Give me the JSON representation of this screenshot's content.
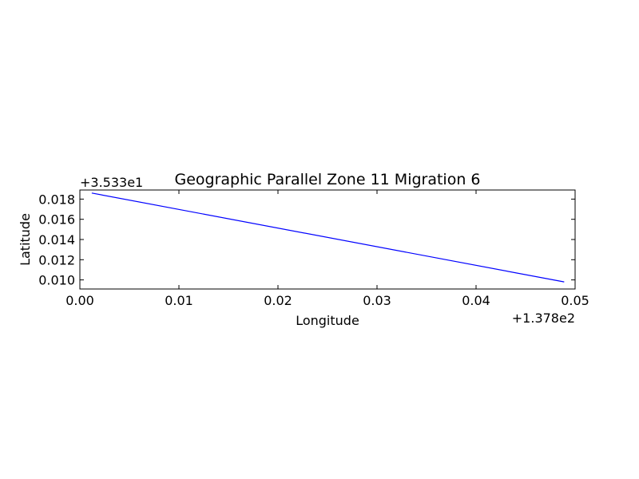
{
  "chart_data": {
    "type": "line",
    "title": "Geographic Parallel Zone 11 Migration 6",
    "xlabel": "Longitude",
    "ylabel": "Latitude",
    "x_offset_label": "+1.378e2",
    "y_offset_label": "+3.533e1",
    "xlim": [
      0.0,
      0.05
    ],
    "ylim": [
      0.0091,
      0.0189
    ],
    "x_ticks": [
      0.0,
      0.01,
      0.02,
      0.03,
      0.04,
      0.05
    ],
    "x_tick_labels": [
      "0.00",
      "0.01",
      "0.02",
      "0.03",
      "0.04",
      "0.05"
    ],
    "y_ticks": [
      0.01,
      0.012,
      0.014,
      0.016,
      0.018
    ],
    "y_tick_labels": [
      "0.010",
      "0.012",
      "0.014",
      "0.016",
      "0.018"
    ],
    "grid": false,
    "series": [
      {
        "color": "#0000ff",
        "x": [
          0.0012,
          0.0489
        ],
        "y": [
          0.0186,
          0.0098
        ]
      }
    ]
  }
}
